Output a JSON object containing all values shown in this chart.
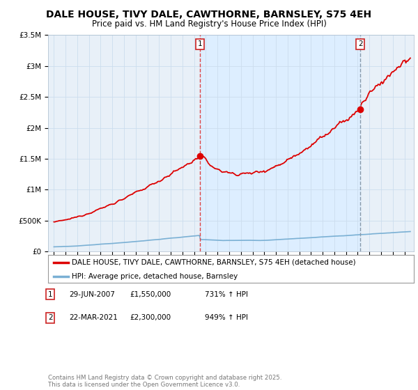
{
  "title": "DALE HOUSE, TIVY DALE, CAWTHORNE, BARNSLEY, S75 4EH",
  "subtitle": "Price paid vs. HM Land Registry's House Price Index (HPI)",
  "ylim": [
    0,
    3500000
  ],
  "xlim_start": 1994.5,
  "xlim_end": 2025.8,
  "yticks": [
    0,
    500000,
    1000000,
    1500000,
    2000000,
    2500000,
    3000000,
    3500000
  ],
  "ytick_labels": [
    "£0",
    "£500K",
    "£1M",
    "£1.5M",
    "£2M",
    "£2.5M",
    "£3M",
    "£3.5M"
  ],
  "background_color": "#ffffff",
  "grid_color": "#ccddee",
  "plot_bg_color": "#e8f0f8",
  "red_line_color": "#dd0000",
  "blue_line_color": "#7ab0d4",
  "vline1_color": "#dd4444",
  "vline2_color": "#8899aa",
  "shade_color": "#ddeeff",
  "sale1_year": 2007.49,
  "sale1_price": 1550000,
  "sale2_year": 2021.22,
  "sale2_price": 2300000,
  "legend_line1": "DALE HOUSE, TIVY DALE, CAWTHORNE, BARNSLEY, S75 4EH (detached house)",
  "legend_line2": "HPI: Average price, detached house, Barnsley",
  "sale1_date": "29-JUN-2007",
  "sale1_price_str": "£1,550,000",
  "sale1_hpi": "731% ↑ HPI",
  "sale2_date": "22-MAR-2021",
  "sale2_price_str": "£2,300,000",
  "sale2_hpi": "949% ↑ HPI",
  "footer": "Contains HM Land Registry data © Crown copyright and database right 2025.\nThis data is licensed under the Open Government Licence v3.0."
}
